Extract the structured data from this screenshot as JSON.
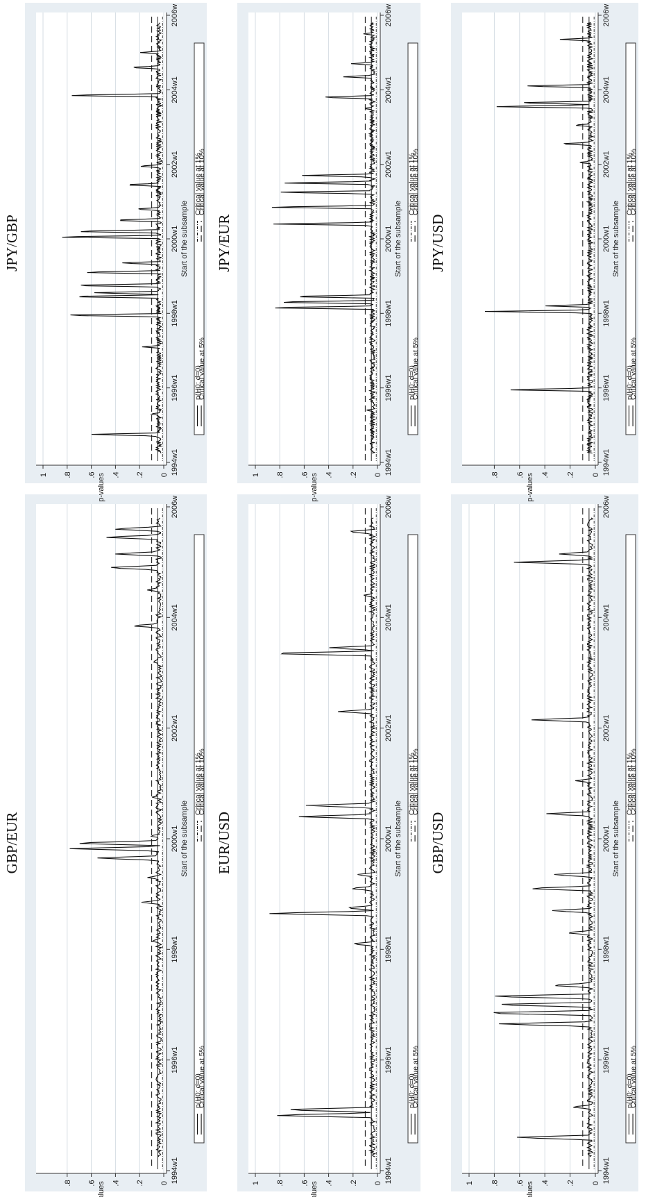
{
  "layout_note_free": true,
  "chart_data": [
    {
      "type": "line",
      "title": "GBP/EUR",
      "xlabel": "Start of the subsample",
      "ylabel": "p-values",
      "x_ticks": [
        "1994w1",
        "1996w1",
        "1998w1",
        "2000w1",
        "2002w1",
        "2004w1",
        "2006w"
      ],
      "y_ticks": [
        "0",
        ".2",
        ".4",
        ".6",
        ".8"
      ],
      "ylim": [
        0,
        1
      ],
      "xlim": [
        1994.0,
        2006.0
      ],
      "spikes": [
        {
          "x": 1998.15,
          "y": 0.11
        },
        {
          "x": 1998.85,
          "y": 0.19
        },
        {
          "x": 1999.3,
          "y": 0.14
        },
        {
          "x": 1999.65,
          "y": 0.58
        },
        {
          "x": 1999.82,
          "y": 0.78
        },
        {
          "x": 1999.92,
          "y": 0.82
        },
        {
          "x": 2000.05,
          "y": 0.12
        },
        {
          "x": 2000.75,
          "y": 0.1
        },
        {
          "x": 2003.2,
          "y": 0.1
        },
        {
          "x": 2003.85,
          "y": 0.28
        },
        {
          "x": 2004.5,
          "y": 0.15
        },
        {
          "x": 2004.9,
          "y": 0.5
        },
        {
          "x": 2005.15,
          "y": 0.42
        },
        {
          "x": 2005.45,
          "y": 0.52
        },
        {
          "x": 2005.6,
          "y": 0.45
        }
      ],
      "crit_1pct": 0.01,
      "crit_5pct": 0.05,
      "crit_10pct": 0.1,
      "legend": [
        "p(H0: d=0)",
        "Critical value at 5%",
        "Critical value at 1%",
        "Critical value at 10%"
      ]
    },
    {
      "type": "line",
      "title": "EUR/USD",
      "xlabel": "Start of the subsample",
      "ylabel": "p-values",
      "x_ticks": [
        "1994w1",
        "1996w1",
        "1998w1",
        "2000w1",
        "2002w1",
        "2004w1",
        "2006w"
      ],
      "y_ticks": [
        "0",
        ".2",
        ".4",
        ".6",
        ".8",
        "1"
      ],
      "ylim": [
        0,
        1
      ],
      "xlim": [
        1994.0,
        2006.0
      ],
      "spikes": [
        {
          "x": 1995.0,
          "y": 0.92
        },
        {
          "x": 1995.1,
          "y": 0.84
        },
        {
          "x": 1998.1,
          "y": 0.22
        },
        {
          "x": 1998.65,
          "y": 0.96
        },
        {
          "x": 1998.75,
          "y": 0.28
        },
        {
          "x": 1999.1,
          "y": 0.24
        },
        {
          "x": 1999.35,
          "y": 0.18
        },
        {
          "x": 2000.4,
          "y": 0.68
        },
        {
          "x": 2000.6,
          "y": 0.62
        },
        {
          "x": 2002.3,
          "y": 0.34
        },
        {
          "x": 2003.35,
          "y": 0.98
        },
        {
          "x": 2003.45,
          "y": 0.42
        },
        {
          "x": 2004.4,
          "y": 0.12
        },
        {
          "x": 2005.55,
          "y": 0.26
        }
      ],
      "crit_1pct": 0.01,
      "crit_5pct": 0.05,
      "crit_10pct": 0.1,
      "legend": [
        "p(H0: d=0)",
        "Critical value at 5%",
        "Critical value at 1%",
        "Critical value at 10%"
      ]
    },
    {
      "type": "line",
      "title": "GBP/USD",
      "xlabel": "Start of the subsample",
      "ylabel": "p-values",
      "x_ticks": [
        "1994w1",
        "1996w1",
        "1998w1",
        "2000w1",
        "2002w1",
        "2004w1",
        "2006w"
      ],
      "y_ticks": [
        "0",
        ".2",
        ".4",
        ".6",
        ".8",
        "1"
      ],
      "ylim": [
        0,
        1
      ],
      "xlim": [
        1994.0,
        2006.0
      ],
      "spikes": [
        {
          "x": 1994.6,
          "y": 0.68
        },
        {
          "x": 1995.15,
          "y": 0.2
        },
        {
          "x": 1996.65,
          "y": 0.82
        },
        {
          "x": 1996.85,
          "y": 0.98
        },
        {
          "x": 1997.0,
          "y": 0.88
        },
        {
          "x": 1997.15,
          "y": 0.92
        },
        {
          "x": 1997.35,
          "y": 0.38
        },
        {
          "x": 1998.3,
          "y": 0.25
        },
        {
          "x": 1998.7,
          "y": 0.36
        },
        {
          "x": 1999.1,
          "y": 0.58
        },
        {
          "x": 1999.35,
          "y": 0.36
        },
        {
          "x": 2000.45,
          "y": 0.42
        },
        {
          "x": 2001.05,
          "y": 0.16
        },
        {
          "x": 2002.15,
          "y": 0.52
        },
        {
          "x": 2005.0,
          "y": 0.66
        },
        {
          "x": 2005.15,
          "y": 0.3
        }
      ],
      "crit_1pct": 0.01,
      "crit_5pct": 0.05,
      "crit_10pct": 0.1,
      "legend": [
        "p(H0: d=0)",
        "Critical value at 5%",
        "Critical value at 1%",
        "Critical value at 10%"
      ]
    },
    {
      "type": "line",
      "title": "JPY/GBP",
      "xlabel": "Start of the subsample",
      "ylabel": "p-values",
      "x_ticks": [
        "1994w1",
        "1996w1",
        "1998w1",
        "2000w1",
        "2002w1",
        "2004w1",
        "2006w"
      ],
      "y_ticks": [
        "0",
        ".2",
        ".4",
        ".6",
        ".8",
        "1"
      ],
      "ylim": [
        0,
        1
      ],
      "xlim": [
        1994.0,
        2006.0
      ],
      "spikes": [
        {
          "x": 1994.75,
          "y": 0.64
        },
        {
          "x": 1995.3,
          "y": 0.12
        },
        {
          "x": 1997.1,
          "y": 0.18
        },
        {
          "x": 1997.95,
          "y": 0.92
        },
        {
          "x": 1998.45,
          "y": 0.86
        },
        {
          "x": 1998.55,
          "y": 0.62
        },
        {
          "x": 1998.75,
          "y": 0.84
        },
        {
          "x": 1999.1,
          "y": 0.74
        },
        {
          "x": 1999.35,
          "y": 0.38
        },
        {
          "x": 2000.05,
          "y": 0.98
        },
        {
          "x": 2000.2,
          "y": 0.82
        },
        {
          "x": 2000.5,
          "y": 0.45
        },
        {
          "x": 2000.8,
          "y": 0.25
        },
        {
          "x": 2001.45,
          "y": 0.35
        },
        {
          "x": 2001.95,
          "y": 0.22
        },
        {
          "x": 2003.85,
          "y": 0.88
        },
        {
          "x": 2004.6,
          "y": 0.3
        },
        {
          "x": 2005.0,
          "y": 0.2
        }
      ],
      "crit_1pct": 0.01,
      "crit_5pct": 0.05,
      "crit_10pct": 0.1,
      "legend": [
        "p(H0: d=0)",
        "Critical value at 5%",
        "Critical value at 1%",
        "Critical value at 10%"
      ]
    },
    {
      "type": "line",
      "title": "JPY/EUR",
      "xlabel": "Start of the subsample",
      "ylabel": "p-values",
      "x_ticks": [
        "1994w1",
        "1996w1",
        "1998w1",
        "2000w1",
        "2002w1",
        "2004w1",
        "2006w"
      ],
      "y_ticks": [
        "0",
        ".2",
        ".4",
        ".6",
        ".8",
        "1"
      ],
      "ylim": [
        0,
        1
      ],
      "xlim": [
        1994.0,
        2006.0
      ],
      "spikes": [
        {
          "x": 1995.4,
          "y": 0.1
        },
        {
          "x": 1998.15,
          "y": 0.98
        },
        {
          "x": 1998.3,
          "y": 0.92
        },
        {
          "x": 1998.45,
          "y": 0.78
        },
        {
          "x": 2000.4,
          "y": 0.9
        },
        {
          "x": 2000.85,
          "y": 0.98
        },
        {
          "x": 2001.25,
          "y": 0.88
        },
        {
          "x": 2001.5,
          "y": 0.82
        },
        {
          "x": 2001.7,
          "y": 0.64
        },
        {
          "x": 2003.5,
          "y": 0.12
        },
        {
          "x": 2003.8,
          "y": 0.5
        },
        {
          "x": 2004.35,
          "y": 0.3
        },
        {
          "x": 2004.7,
          "y": 0.22
        },
        {
          "x": 2005.5,
          "y": 0.12
        }
      ],
      "crit_1pct": 0.01,
      "crit_5pct": 0.05,
      "crit_10pct": 0.1,
      "legend": [
        "p(H0: d=0)",
        "Critical value at 5%",
        "Critical value at 1%",
        "Critical value at 10%"
      ]
    },
    {
      "type": "line",
      "title": "JPY/USD",
      "xlabel": "Start of the subsample",
      "ylabel": "p-values",
      "x_ticks": [
        "1994w1",
        "1996w1",
        "1998w1",
        "2000w1",
        "2002w1",
        "2004w1",
        "2006w"
      ],
      "y_ticks": [
        "0",
        ".2",
        ".4",
        ".6",
        ".8"
      ],
      "ylim": [
        0,
        1
      ],
      "xlim": [
        1994.0,
        2006.0
      ],
      "spikes": [
        {
          "x": 1995.95,
          "y": 0.75
        },
        {
          "x": 1998.05,
          "y": 0.88
        },
        {
          "x": 1998.2,
          "y": 0.4
        },
        {
          "x": 2002.05,
          "y": 0.14
        },
        {
          "x": 2002.55,
          "y": 0.3
        },
        {
          "x": 2003.05,
          "y": 0.18
        },
        {
          "x": 2003.55,
          "y": 0.86
        },
        {
          "x": 2003.65,
          "y": 0.68
        },
        {
          "x": 2004.1,
          "y": 0.6
        },
        {
          "x": 2005.35,
          "y": 0.3
        }
      ],
      "crit_1pct": 0.01,
      "crit_5pct": 0.05,
      "crit_10pct": 0.1,
      "legend": [
        "p(H0: d=0)",
        "Critical value at 5%",
        "Critical value at 1%",
        "Critical value at 10%"
      ]
    }
  ]
}
